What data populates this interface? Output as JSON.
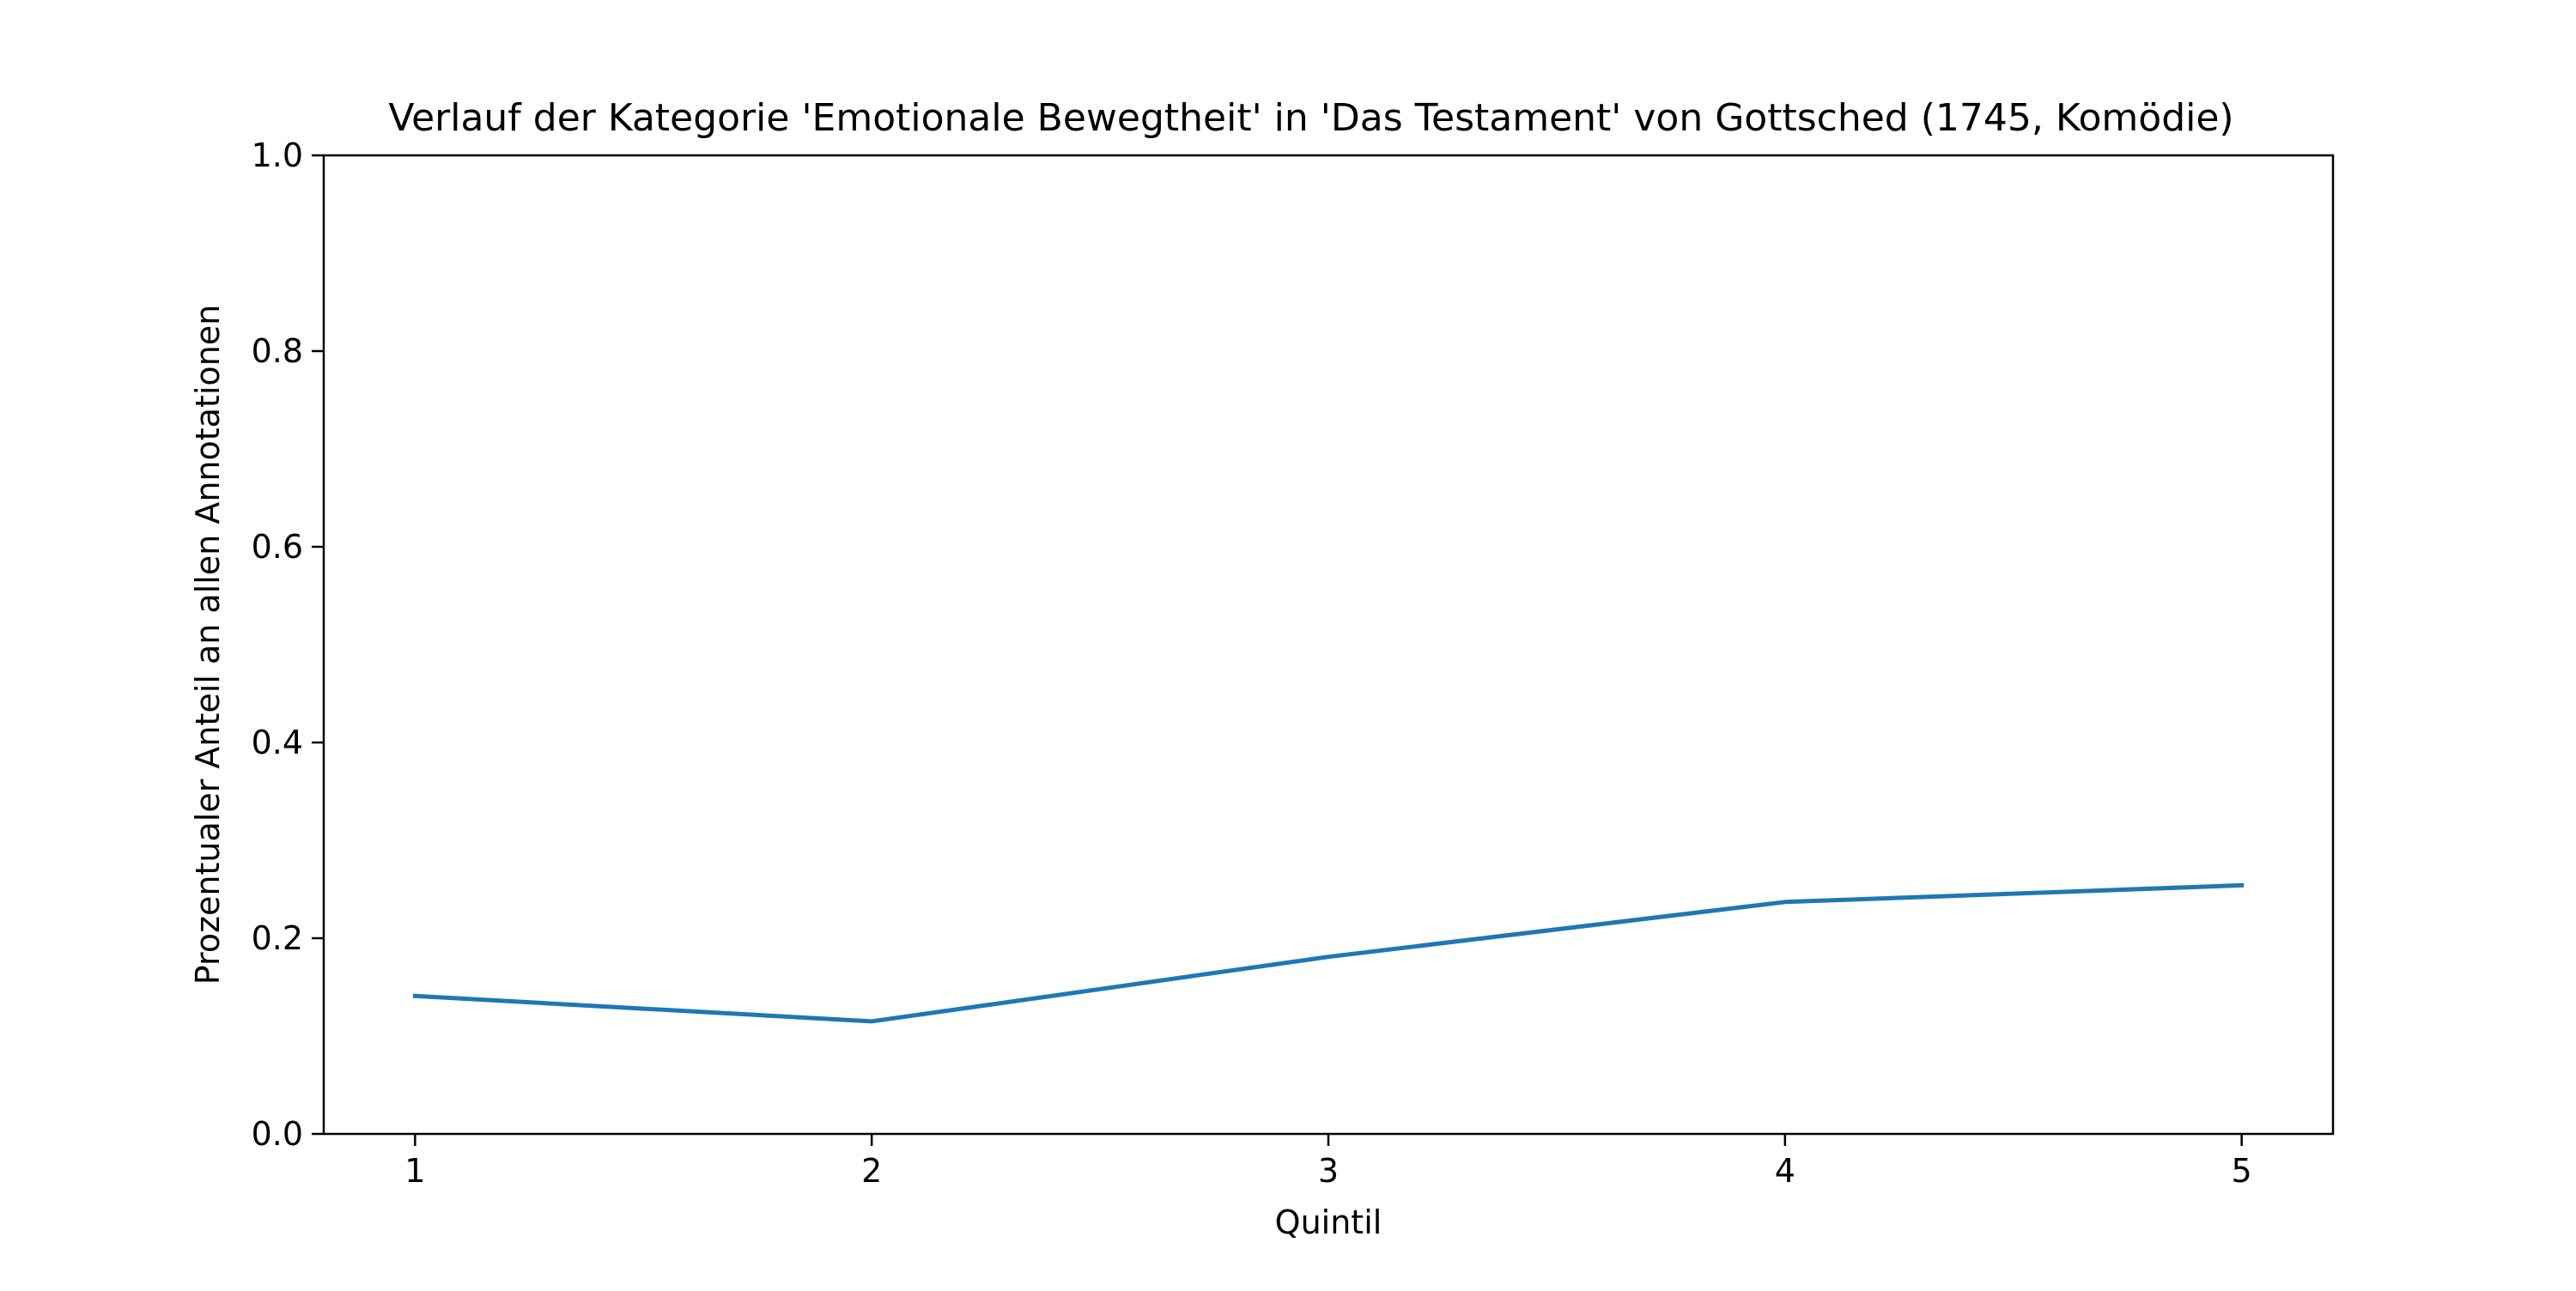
{
  "chart_data": {
    "type": "line",
    "title": "Verlauf der Kategorie 'Emotionale Bewegtheit' in 'Das Testament' von Gottsched (1745, Komödie)",
    "xlabel": "Quintil",
    "ylabel": "Prozentualer Anteil an allen Annotationen",
    "x": [
      1,
      2,
      3,
      4,
      5
    ],
    "series": [
      {
        "values": [
          0.141,
          0.115,
          0.181,
          0.237,
          0.254
        ],
        "color": "#1f77b4"
      }
    ],
    "xlim": [
      0.8,
      5.2
    ],
    "ylim": [
      0.0,
      1.0
    ],
    "x_ticks": [
      "1",
      "2",
      "3",
      "4",
      "5"
    ],
    "y_ticks": [
      "0.0",
      "0.2",
      "0.4",
      "0.6",
      "0.8",
      "1.0"
    ],
    "grid": false,
    "legend": "none"
  }
}
